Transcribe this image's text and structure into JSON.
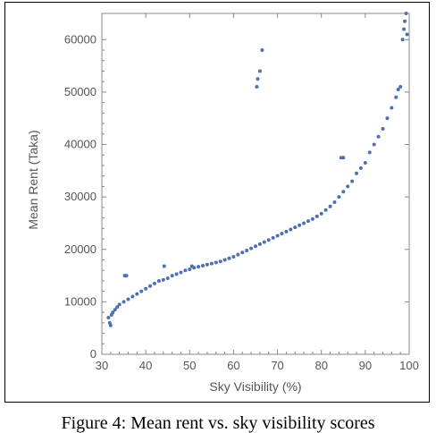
{
  "caption": "Figure 4: Mean rent vs. sky visibility scores",
  "colors": {
    "points": "#4f6fb3",
    "axes": "#888888",
    "text": "#555555"
  },
  "chart_data": {
    "type": "scatter",
    "title": "",
    "xlabel": "Sky Visibility (%)",
    "ylabel": "Mean Rent (Taka)",
    "xlim": [
      30,
      100
    ],
    "ylim": [
      0,
      65000
    ],
    "xticks": [
      30,
      40,
      50,
      60,
      70,
      80,
      90,
      100
    ],
    "yticks": [
      0,
      10000,
      20000,
      30000,
      40000,
      50000,
      60000
    ],
    "grid": false,
    "legend": "none",
    "series": [
      {
        "name": "",
        "points": [
          [
            31.5,
            7000
          ],
          [
            31.8,
            6000
          ],
          [
            32.0,
            5500
          ],
          [
            32.2,
            7500
          ],
          [
            32.5,
            8000
          ],
          [
            33.0,
            8500
          ],
          [
            33.5,
            9000
          ],
          [
            34.0,
            9500
          ],
          [
            35.0,
            10000
          ],
          [
            35.2,
            15000
          ],
          [
            35.6,
            15000
          ],
          [
            36.0,
            10500
          ],
          [
            37.0,
            11000
          ],
          [
            38.0,
            11500
          ],
          [
            39.0,
            12000
          ],
          [
            40.0,
            12500
          ],
          [
            41.0,
            13000
          ],
          [
            42.0,
            13500
          ],
          [
            43.0,
            14000
          ],
          [
            44.0,
            14200
          ],
          [
            44.2,
            16800
          ],
          [
            45.0,
            14500
          ],
          [
            46.0,
            15000
          ],
          [
            47.0,
            15300
          ],
          [
            48.0,
            15600
          ],
          [
            49.0,
            16000
          ],
          [
            50.0,
            16200
          ],
          [
            50.5,
            16800
          ],
          [
            51.0,
            16500
          ],
          [
            52.0,
            16700
          ],
          [
            53.0,
            16900
          ],
          [
            54.0,
            17100
          ],
          [
            55.0,
            17300
          ],
          [
            56.0,
            17500
          ],
          [
            57.0,
            17700
          ],
          [
            58.0,
            18000
          ],
          [
            59.0,
            18300
          ],
          [
            60.0,
            18600
          ],
          [
            61.0,
            19000
          ],
          [
            62.0,
            19400
          ],
          [
            63.0,
            19800
          ],
          [
            64.0,
            20200
          ],
          [
            65.0,
            20600
          ],
          [
            65.3,
            51000
          ],
          [
            65.5,
            52500
          ],
          [
            66.0,
            54000
          ],
          [
            66.5,
            58000
          ],
          [
            66.0,
            21000
          ],
          [
            67.0,
            21400
          ],
          [
            68.0,
            21800
          ],
          [
            69.0,
            22200
          ],
          [
            70.0,
            22600
          ],
          [
            71.0,
            23000
          ],
          [
            72.0,
            23400
          ],
          [
            73.0,
            23800
          ],
          [
            74.0,
            24200
          ],
          [
            75.0,
            24600
          ],
          [
            76.0,
            25000
          ],
          [
            77.0,
            25400
          ],
          [
            78.0,
            25800
          ],
          [
            79.0,
            26300
          ],
          [
            80.0,
            26800
          ],
          [
            81.0,
            27500
          ],
          [
            82.0,
            28200
          ],
          [
            83.0,
            29000
          ],
          [
            84.0,
            30000
          ],
          [
            84.5,
            37500
          ],
          [
            85.0,
            37500
          ],
          [
            85.0,
            31000
          ],
          [
            86.0,
            32000
          ],
          [
            87.0,
            33000
          ],
          [
            88.0,
            34500
          ],
          [
            89.0,
            35500
          ],
          [
            90.0,
            36500
          ],
          [
            91.0,
            38500
          ],
          [
            92.0,
            40000
          ],
          [
            93.0,
            41500
          ],
          [
            94.0,
            43000
          ],
          [
            95.0,
            45000
          ],
          [
            96.0,
            47000
          ],
          [
            97.0,
            49000
          ],
          [
            97.5,
            50500
          ],
          [
            98.0,
            51000
          ],
          [
            98.5,
            60000
          ],
          [
            98.8,
            62000
          ],
          [
            99.0,
            63500
          ],
          [
            99.3,
            65000
          ],
          [
            99.5,
            61000
          ]
        ]
      }
    ]
  }
}
